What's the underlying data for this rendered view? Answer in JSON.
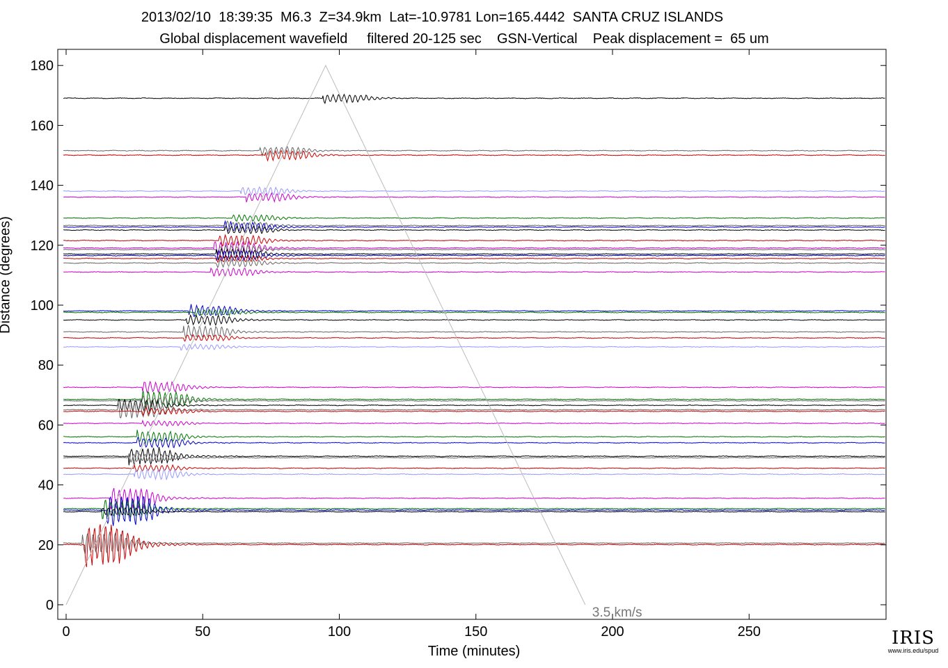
{
  "header": {
    "line1": "2013/02/10  18:39:35  M6.3  Z=34.9km  Lat=-10.9781 Lon=165.4442  SANTA CRUZ ISLANDS",
    "line2": "Global displacement wavefield     filtered 20-125 sec    GSN-Vertical    Peak displacement =  65 um"
  },
  "logo": {
    "text": "IRIS",
    "url": "www.iris.edu/spud"
  },
  "chart_data": {
    "type": "line",
    "title": "Global displacement wavefield     filtered 20-125 sec    GSN-Vertical    Peak displacement =  65 um",
    "xlabel": "Time (minutes)",
    "ylabel": "Distance (degrees)",
    "xlim": [
      -3,
      300
    ],
    "ylim": [
      -5,
      185
    ],
    "xticks": [
      0,
      50,
      100,
      150,
      200,
      250
    ],
    "yticks": [
      0,
      20,
      40,
      60,
      80,
      100,
      120,
      140,
      160,
      180
    ],
    "grid": false,
    "velocity_line": {
      "label": "3.5 km/s",
      "x": [
        0,
        95,
        190
      ],
      "y": [
        0,
        180,
        0
      ],
      "color": "#bbbbbb"
    },
    "series": [
      {
        "distance": 169,
        "color": "#000000",
        "onset": 94,
        "amp": 1.6
      },
      {
        "distance": 151.5,
        "color": "#666666",
        "onset": 71,
        "amp": 1.5
      },
      {
        "distance": 150,
        "color": "#cc0000",
        "onset": 73,
        "amp": 1.8
      },
      {
        "distance": 138,
        "color": "#9999ff",
        "onset": 64,
        "amp": 1.6
      },
      {
        "distance": 136,
        "color": "#cc00cc",
        "onset": 66,
        "amp": 1.5
      },
      {
        "distance": 129,
        "color": "#007700",
        "onset": 61,
        "amp": 1.2
      },
      {
        "distance": 126.5,
        "color": "#666666",
        "onset": 58,
        "amp": 1.5
      },
      {
        "distance": 126,
        "color": "#0000cc",
        "onset": 58,
        "amp": 1.8
      },
      {
        "distance": 125,
        "color": "#000000",
        "onset": 58,
        "amp": 1.5
      },
      {
        "distance": 121.5,
        "color": "#cc0000",
        "onset": 56,
        "amp": 2.0
      },
      {
        "distance": 119,
        "color": "#cc00cc",
        "onset": 54,
        "amp": 2.6
      },
      {
        "distance": 118.5,
        "color": "#666666",
        "onset": 55,
        "amp": 1.5
      },
      {
        "distance": 117,
        "color": "#000000",
        "onset": 55,
        "amp": 2.0
      },
      {
        "distance": 116.5,
        "color": "#0000cc",
        "onset": 55,
        "amp": 2.0
      },
      {
        "distance": 115.5,
        "color": "#cc0000",
        "onset": 55,
        "amp": 1.2
      },
      {
        "distance": 114,
        "color": "#666666",
        "onset": 55,
        "amp": 1.5
      },
      {
        "distance": 111,
        "color": "#cc00cc",
        "onset": 53,
        "amp": 1.5
      },
      {
        "distance": 98,
        "color": "#0000cc",
        "onset": 45,
        "amp": 2.2
      },
      {
        "distance": 97.5,
        "color": "#007700",
        "onset": 47,
        "amp": 1.2
      },
      {
        "distance": 95,
        "color": "#000000",
        "onset": 44,
        "amp": 1.8
      },
      {
        "distance": 91,
        "color": "#666666",
        "onset": 43,
        "amp": 2.2
      },
      {
        "distance": 89,
        "color": "#cc0000",
        "onset": 43,
        "amp": 1.2
      },
      {
        "distance": 86,
        "color": "#9999ff",
        "onset": 42,
        "amp": 1.0
      },
      {
        "distance": 72.5,
        "color": "#cc00cc",
        "onset": 28,
        "amp": 2.0
      },
      {
        "distance": 68.5,
        "color": "#007700",
        "onset": 28,
        "amp": 3.0
      },
      {
        "distance": 68,
        "color": "#666666",
        "onset": 28,
        "amp": 1.5
      },
      {
        "distance": 66.5,
        "color": "#000000",
        "onset": 19,
        "amp": 2.4
      },
      {
        "distance": 65,
        "color": "#666666",
        "onset": 19,
        "amp": 3.2
      },
      {
        "distance": 64.5,
        "color": "#cc0000",
        "onset": 28,
        "amp": 1.2
      },
      {
        "distance": 60.5,
        "color": "#cc00cc",
        "onset": 28,
        "amp": 1.0
      },
      {
        "distance": 56,
        "color": "#007700",
        "onset": 26,
        "amp": 2.2
      },
      {
        "distance": 54,
        "color": "#0000cc",
        "onset": 26,
        "amp": 2.0
      },
      {
        "distance": 49.5,
        "color": "#000000",
        "onset": 23,
        "amp": 3.2
      },
      {
        "distance": 49,
        "color": "#666666",
        "onset": 23,
        "amp": 1.5
      },
      {
        "distance": 45.5,
        "color": "#cc0000",
        "onset": 25,
        "amp": 1.2
      },
      {
        "distance": 43.5,
        "color": "#9999ff",
        "onset": 25,
        "amp": 2.0
      },
      {
        "distance": 35.5,
        "color": "#cc00cc",
        "onset": 16,
        "amp": 4.0
      },
      {
        "distance": 32,
        "color": "#007700",
        "onset": 13,
        "amp": 3.5
      },
      {
        "distance": 31.5,
        "color": "#0000cc",
        "onset": 15,
        "amp": 6.0
      },
      {
        "distance": 31,
        "color": "#000000",
        "onset": 13,
        "amp": 1.5
      },
      {
        "distance": 20.5,
        "color": "#666666",
        "onset": 6,
        "amp": 4.0
      },
      {
        "distance": 20,
        "color": "#cc0000",
        "onset": 7,
        "amp": 8.0
      }
    ]
  }
}
